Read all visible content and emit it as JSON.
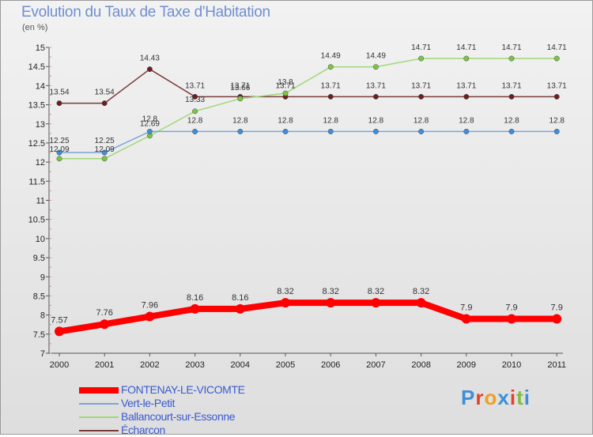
{
  "title": "Evolution du Taux de Taxe d'Habitation",
  "subtitle": "(en %)",
  "logo": {
    "text": "Proxiti",
    "colors": [
      "#3d8fd8",
      "#e3432c",
      "#f0a020",
      "#3d8fd8",
      "#e3432c",
      "#7fbf3f",
      "#3d8fd8"
    ]
  },
  "chart_data": {
    "type": "line",
    "title": "Evolution du Taux de Taxe d'Habitation",
    "ylabel": "(en %)",
    "xlabel": "",
    "ylim": [
      7,
      15
    ],
    "yticks": [
      "7",
      "7.5",
      "8",
      "8.5",
      "9",
      "9.5",
      "10",
      "10.5",
      "11",
      "11.5",
      "12",
      "12.5",
      "13",
      "13.5",
      "14",
      "14.5",
      "15"
    ],
    "x": [
      "2000",
      "2001",
      "2002",
      "2003",
      "2004",
      "2005",
      "2006",
      "2007",
      "2008",
      "2009",
      "2010",
      "2011"
    ],
    "grid": false,
    "legend_position": "bottom",
    "series": [
      {
        "name": "FONTENAY-LE-VICOMTE",
        "color": "#ff0000",
        "values": [
          7.57,
          7.76,
          7.96,
          8.16,
          8.16,
          8.32,
          8.32,
          8.32,
          8.32,
          7.9,
          7.9,
          7.9
        ],
        "labels": [
          "7.57",
          "7.76",
          "7.96",
          "8.16",
          "8.16",
          "8.32",
          "8.32",
          "8.32",
          "8.32",
          "7.9",
          "7.9",
          "7.9"
        ]
      },
      {
        "name": "Vert-le-Petit",
        "color": "#7ba6d6",
        "marker": "#3d8fd8",
        "values": [
          12.25,
          12.25,
          12.8,
          12.8,
          12.8,
          12.8,
          12.8,
          12.8,
          12.8,
          12.8,
          12.8,
          12.8
        ],
        "labels": [
          "12.25",
          "12.25",
          "12.8",
          "12.8",
          "12.8",
          "12.8",
          "12.8",
          "12.8",
          "12.8",
          "12.8",
          "12.8",
          "12.8"
        ]
      },
      {
        "name": "Ballancourt-sur-Essonne",
        "color": "#a0d878",
        "marker": "#7cc544",
        "values": [
          12.09,
          12.09,
          12.69,
          13.33,
          13.66,
          13.8,
          14.49,
          14.49,
          14.71,
          14.71,
          14.71,
          14.71
        ],
        "labels": [
          "12.09",
          "12.09",
          "12.69",
          "13.33",
          "13.66",
          "13.8",
          "14.49",
          "14.49",
          "14.71",
          "14.71",
          "14.71",
          "14.71"
        ]
      },
      {
        "name": "Écharcon",
        "color": "#7a3a3a",
        "marker": "#6b2020",
        "values": [
          13.54,
          13.54,
          14.43,
          13.71,
          13.71,
          13.71,
          13.71,
          13.71,
          13.71,
          13.71,
          13.71,
          13.71
        ],
        "labels": [
          "13.54",
          "13.54",
          "14.43",
          "13.71",
          "13.71",
          "13.71",
          "13.71",
          "13.71",
          "13.71",
          "13.71",
          "13.71",
          "13.71"
        ]
      }
    ]
  }
}
